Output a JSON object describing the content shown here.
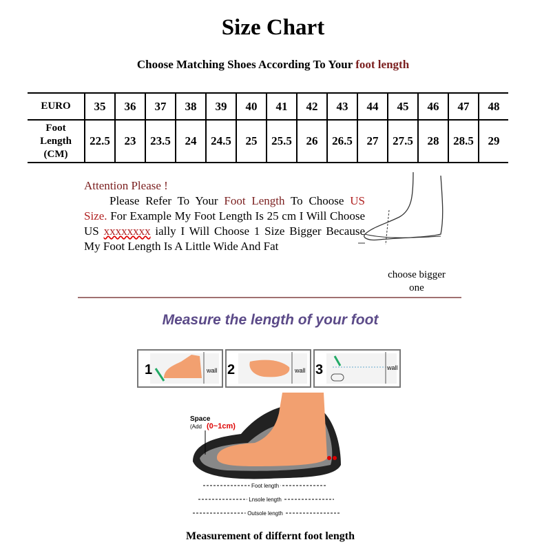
{
  "header": {
    "title": "Size Chart",
    "subtitle": "Choose Matching Shoes According To Your ",
    "subtitle_highlight": "foot length"
  },
  "table": {
    "rows": [
      [
        "EURO",
        35,
        36,
        37,
        38,
        39,
        40,
        41,
        42,
        43,
        44,
        45,
        46,
        47,
        48
      ],
      [
        "Foot Length (CM)",
        22.5,
        23,
        23.5,
        24,
        24.5,
        25,
        25.5,
        26,
        26.5,
        27,
        27.5,
        28,
        28.5,
        29
      ]
    ]
  },
  "note": {
    "heading": "Attention Please !",
    "segments": [
      "Please Refer To Your ",
      "Foot Length",
      " To Choose ",
      "US Size.",
      " For Example My Foot Length Is 25 cm I Will Choose US ",
      "xxxxxxxx",
      " ially I Will Choose 1 Size Bigger Because My Foot Length Is A Little Wide And Fat"
    ],
    "figure_caption": "choose bigger one"
  },
  "measure": {
    "title": "Measure the length of your foot",
    "steps": [
      {
        "number": "1",
        "label": "wall"
      },
      {
        "number": "2",
        "label": "wall"
      },
      {
        "number": "3",
        "label": "wall"
      }
    ],
    "space_label": "Space",
    "space_add": "(Add",
    "space_range": "(0~1cm)",
    "lengths": [
      "Foot length",
      "Lnsole length",
      "Outsole length"
    ],
    "caption": "Measurement of differnt foot length"
  }
}
